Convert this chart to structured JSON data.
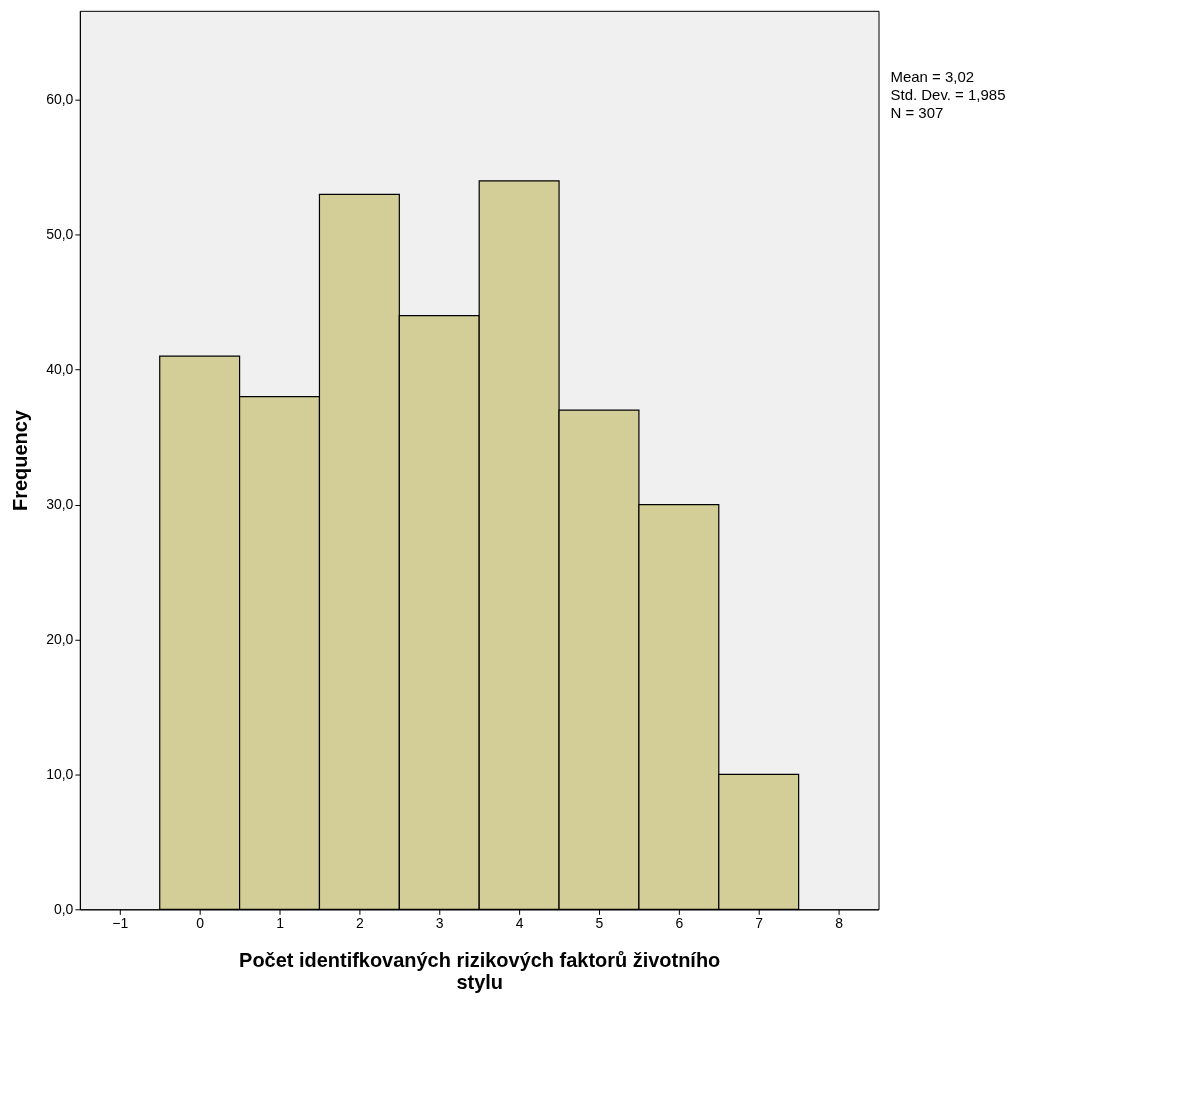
{
  "chart_data": {
    "type": "histogram",
    "xlabel": "Počet identifkovaných rizikových faktorů životního stylu",
    "ylabel": "Frequency",
    "bins": [
      -0.5,
      0.5,
      1.5,
      2.5,
      3.5,
      4.5,
      5.5,
      6.5,
      7.5
    ],
    "values": [
      41,
      38,
      53,
      44,
      54,
      37,
      30,
      10
    ],
    "color": "#d3ce97",
    "xlim": [
      -1.5,
      8.5
    ],
    "xticks": [
      -1,
      0,
      1,
      2,
      3,
      4,
      5,
      6,
      7,
      8
    ],
    "ylim": [
      0,
      66.6
    ],
    "yticks": [
      {
        "value": 0,
        "label": "0,0"
      },
      {
        "value": 10,
        "label": "10,0"
      },
      {
        "value": 20,
        "label": "20,0"
      },
      {
        "value": 30,
        "label": "30,0"
      },
      {
        "value": 40,
        "label": "40,0"
      },
      {
        "value": 50,
        "label": "50,0"
      },
      {
        "value": 60,
        "label": "60,0"
      }
    ],
    "grid": false,
    "annotations": [
      "Mean = 3,02",
      "Std. Dev. = 1,985",
      "N = 307"
    ]
  }
}
